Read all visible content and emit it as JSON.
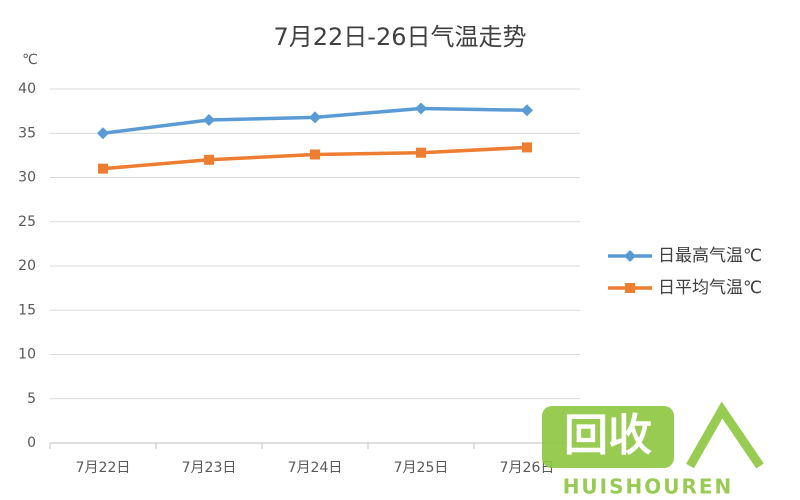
{
  "chart_data": {
    "type": "line",
    "title": "7月22日-26日气温走势",
    "y_unit": "℃",
    "categories": [
      "7月22日",
      "7月23日",
      "7月24日",
      "7月25日",
      "7月26日"
    ],
    "series": [
      {
        "name": "日最高气温℃",
        "color": "#5b9bd5",
        "marker": "diamond",
        "values": [
          35,
          36.5,
          36.8,
          37.8,
          37.6
        ]
      },
      {
        "name": "日平均气温℃",
        "color": "#ed7d31",
        "marker": "square",
        "values": [
          31,
          32,
          32.6,
          32.8,
          33.4
        ]
      }
    ],
    "ylim": [
      0,
      40
    ],
    "yticks": [
      0,
      5,
      10,
      15,
      20,
      25,
      30,
      35,
      40
    ],
    "grid": true,
    "legend": "right"
  },
  "watermark": {
    "title": "回收",
    "caption": "HUISHOUREN"
  }
}
